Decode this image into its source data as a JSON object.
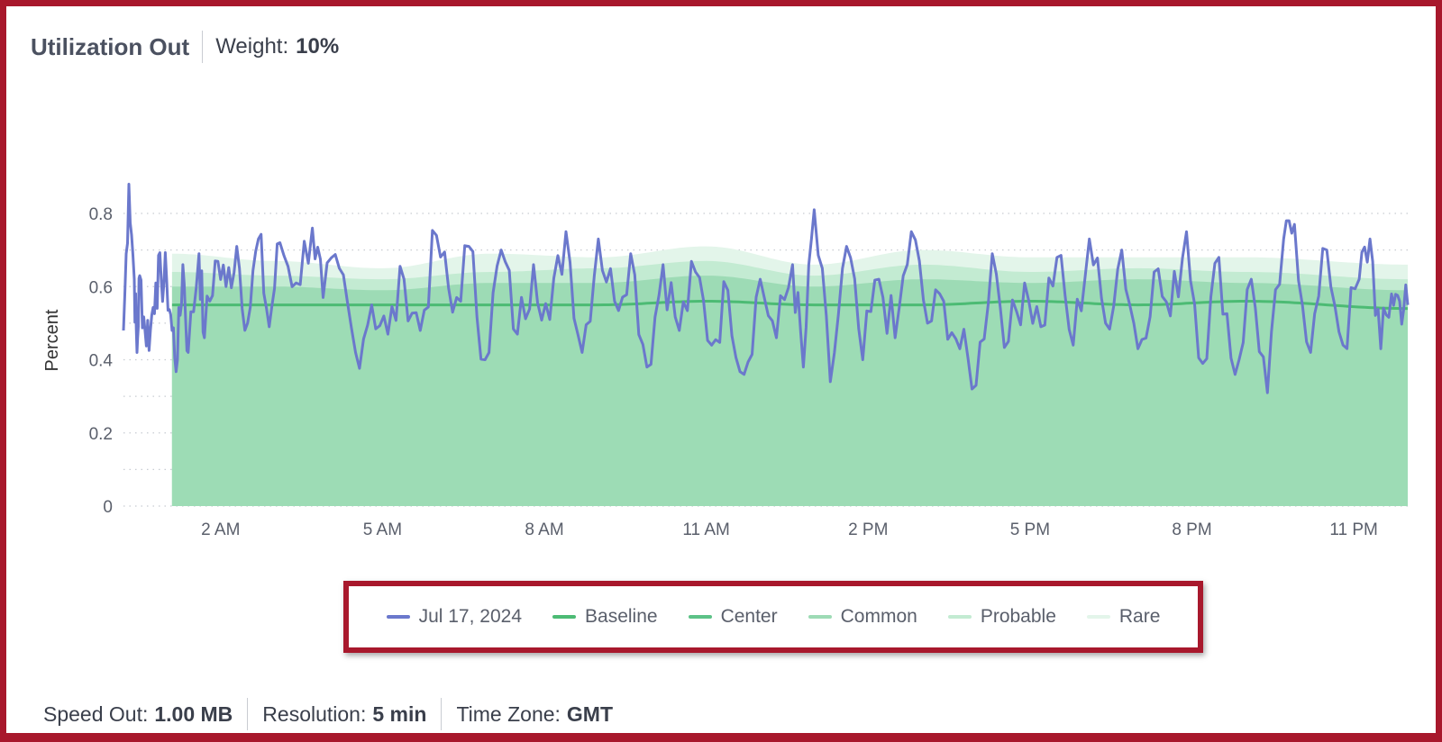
{
  "header": {
    "title": "Utilization Out",
    "weight_label": "Weight:",
    "weight_value": "10%"
  },
  "footer": {
    "speed_label": "Speed Out:",
    "speed_value": "1.00 MB",
    "resolution_label": "Resolution:",
    "resolution_value": "5 min",
    "timezone_label": "Time Zone:",
    "timezone_value": "GMT"
  },
  "colors": {
    "series": "#6b78cc",
    "baseline": "#4cbb74",
    "center": "#5cc287",
    "common": "#9ddbb5",
    "probable": "#c3ebd2",
    "rare": "#e3f5ea",
    "frame": "#a8182c"
  },
  "legend": [
    {
      "label": "Jul 17, 2024",
      "color": "#6b78cc"
    },
    {
      "label": "Baseline",
      "color": "#4cbb74"
    },
    {
      "label": "Center",
      "color": "#5cc287"
    },
    {
      "label": "Common",
      "color": "#9ddbb5"
    },
    {
      "label": "Probable",
      "color": "#c3ebd2"
    },
    {
      "label": "Rare",
      "color": "#e3f5ea"
    }
  ],
  "chart_data": {
    "type": "line",
    "ylabel": "Percent",
    "ylim": [
      0,
      0.8
    ],
    "yticks": [
      0,
      0.2,
      0.4,
      0.6,
      0.8
    ],
    "ytick_labels": [
      "0",
      "0.2",
      "0.4",
      "0.6",
      "0.8"
    ],
    "xlim_hours": [
      0.2,
      24
    ],
    "xticks_hours": [
      2,
      5,
      8,
      11,
      14,
      17,
      20,
      23
    ],
    "xtick_labels": [
      "2 AM",
      "5 AM",
      "8 AM",
      "11 AM",
      "2 PM",
      "5 PM",
      "8 PM",
      "11 PM"
    ],
    "grid": "horizontal-dotted",
    "band_start_hour": 1.1,
    "series_name": "Jul 17, 2024",
    "observed_sample": [
      {
        "x": 0.2,
        "y": 0.48
      },
      {
        "x": 0.3,
        "y": 0.88
      },
      {
        "x": 0.4,
        "y": 0.62
      },
      {
        "x": 0.45,
        "y": 0.42
      },
      {
        "x": 0.5,
        "y": 0.63
      },
      {
        "x": 0.6,
        "y": 0.48
      },
      {
        "x": 0.7,
        "y": 0.48
      },
      {
        "x": 0.8,
        "y": 0.61
      },
      {
        "x": 0.9,
        "y": 0.62
      },
      {
        "x": 1.0,
        "y": 0.62
      },
      {
        "x": 1.1,
        "y": 0.48
      },
      {
        "x": 1.2,
        "y": 0.4
      },
      {
        "x": 1.3,
        "y": 0.66
      },
      {
        "x": 1.4,
        "y": 0.42
      },
      {
        "x": 1.6,
        "y": 0.69
      },
      {
        "x": 1.7,
        "y": 0.46
      },
      {
        "x": 1.9,
        "y": 0.67
      },
      {
        "x": 2.1,
        "y": 0.6
      },
      {
        "x": 2.3,
        "y": 0.71
      },
      {
        "x": 2.5,
        "y": 0.5
      },
      {
        "x": 2.7,
        "y": 0.73
      },
      {
        "x": 2.9,
        "y": 0.49
      },
      {
        "x": 3.1,
        "y": 0.72
      },
      {
        "x": 3.4,
        "y": 0.61
      },
      {
        "x": 3.7,
        "y": 0.76
      },
      {
        "x": 3.9,
        "y": 0.57
      },
      {
        "x": 4.2,
        "y": 0.65
      },
      {
        "x": 4.5,
        "y": 0.42
      },
      {
        "x": 4.8,
        "y": 0.55
      },
      {
        "x": 5.1,
        "y": 0.47
      },
      {
        "x": 5.4,
        "y": 0.62
      },
      {
        "x": 5.7,
        "y": 0.48
      },
      {
        "x": 6.0,
        "y": 0.74
      },
      {
        "x": 6.3,
        "y": 0.53
      },
      {
        "x": 6.6,
        "y": 0.71
      },
      {
        "x": 6.9,
        "y": 0.4
      },
      {
        "x": 7.2,
        "y": 0.7
      },
      {
        "x": 7.5,
        "y": 0.47
      },
      {
        "x": 7.8,
        "y": 0.66
      },
      {
        "x": 8.1,
        "y": 0.51
      },
      {
        "x": 8.4,
        "y": 0.75
      },
      {
        "x": 8.7,
        "y": 0.42
      },
      {
        "x": 9.0,
        "y": 0.73
      },
      {
        "x": 9.3,
        "y": 0.56
      },
      {
        "x": 9.6,
        "y": 0.69
      },
      {
        "x": 9.9,
        "y": 0.38
      },
      {
        "x": 10.2,
        "y": 0.66
      },
      {
        "x": 10.5,
        "y": 0.48
      },
      {
        "x": 10.8,
        "y": 0.64
      },
      {
        "x": 11.1,
        "y": 0.44
      },
      {
        "x": 11.4,
        "y": 0.59
      },
      {
        "x": 11.7,
        "y": 0.36
      },
      {
        "x": 12.0,
        "y": 0.62
      },
      {
        "x": 12.3,
        "y": 0.46
      },
      {
        "x": 12.6,
        "y": 0.66
      },
      {
        "x": 12.8,
        "y": 0.38
      },
      {
        "x": 13.0,
        "y": 0.81
      },
      {
        "x": 13.3,
        "y": 0.34
      },
      {
        "x": 13.6,
        "y": 0.71
      },
      {
        "x": 13.9,
        "y": 0.4
      },
      {
        "x": 14.2,
        "y": 0.62
      },
      {
        "x": 14.5,
        "y": 0.46
      },
      {
        "x": 14.8,
        "y": 0.75
      },
      {
        "x": 15.1,
        "y": 0.5
      },
      {
        "x": 15.4,
        "y": 0.56
      },
      {
        "x": 15.7,
        "y": 0.43
      },
      {
        "x": 16.0,
        "y": 0.33
      },
      {
        "x": 16.3,
        "y": 0.69
      },
      {
        "x": 16.6,
        "y": 0.45
      },
      {
        "x": 16.9,
        "y": 0.61
      },
      {
        "x": 17.2,
        "y": 0.49
      },
      {
        "x": 17.5,
        "y": 0.68
      },
      {
        "x": 17.8,
        "y": 0.44
      },
      {
        "x": 18.1,
        "y": 0.73
      },
      {
        "x": 18.4,
        "y": 0.5
      },
      {
        "x": 18.7,
        "y": 0.7
      },
      {
        "x": 19.0,
        "y": 0.43
      },
      {
        "x": 19.3,
        "y": 0.64
      },
      {
        "x": 19.6,
        "y": 0.52
      },
      {
        "x": 19.9,
        "y": 0.75
      },
      {
        "x": 20.2,
        "y": 0.39
      },
      {
        "x": 20.5,
        "y": 0.68
      },
      {
        "x": 20.8,
        "y": 0.36
      },
      {
        "x": 21.1,
        "y": 0.62
      },
      {
        "x": 21.4,
        "y": 0.31
      },
      {
        "x": 21.7,
        "y": 0.73
      },
      {
        "x": 21.9,
        "y": 0.77
      },
      {
        "x": 22.2,
        "y": 0.42
      },
      {
        "x": 22.5,
        "y": 0.7
      },
      {
        "x": 22.8,
        "y": 0.44
      },
      {
        "x": 23.1,
        "y": 0.62
      },
      {
        "x": 23.3,
        "y": 0.73
      },
      {
        "x": 23.5,
        "y": 0.43
      },
      {
        "x": 23.7,
        "y": 0.58
      },
      {
        "x": 23.85,
        "y": 0.56
      },
      {
        "x": 24.0,
        "y": 0.55
      }
    ],
    "band_sample": [
      {
        "x": 1.1,
        "baseline": 0.55,
        "common": 0.6,
        "probable": 0.64,
        "rare": 0.69
      },
      {
        "x": 3.0,
        "baseline": 0.55,
        "common": 0.6,
        "probable": 0.63,
        "rare": 0.67
      },
      {
        "x": 5.0,
        "baseline": 0.55,
        "common": 0.59,
        "probable": 0.62,
        "rare": 0.65
      },
      {
        "x": 7.0,
        "baseline": 0.55,
        "common": 0.61,
        "probable": 0.64,
        "rare": 0.69
      },
      {
        "x": 9.0,
        "baseline": 0.55,
        "common": 0.61,
        "probable": 0.65,
        "rare": 0.68
      },
      {
        "x": 11.0,
        "baseline": 0.56,
        "common": 0.63,
        "probable": 0.67,
        "rare": 0.71
      },
      {
        "x": 13.0,
        "baseline": 0.55,
        "common": 0.6,
        "probable": 0.63,
        "rare": 0.66
      },
      {
        "x": 15.0,
        "baseline": 0.55,
        "common": 0.62,
        "probable": 0.66,
        "rare": 0.7
      },
      {
        "x": 17.0,
        "baseline": 0.56,
        "common": 0.61,
        "probable": 0.64,
        "rare": 0.68
      },
      {
        "x": 19.0,
        "baseline": 0.55,
        "common": 0.62,
        "probable": 0.65,
        "rare": 0.68
      },
      {
        "x": 21.0,
        "baseline": 0.56,
        "common": 0.61,
        "probable": 0.64,
        "rare": 0.68
      },
      {
        "x": 24.0,
        "baseline": 0.54,
        "common": 0.59,
        "probable": 0.62,
        "rare": 0.66
      }
    ]
  }
}
